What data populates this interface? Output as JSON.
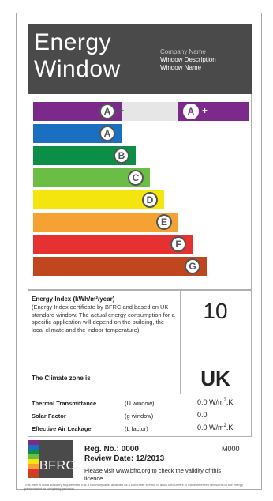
{
  "header": {
    "title_line1": "Energy",
    "title_line2": "Window",
    "company_name": "Company Name",
    "window_description": "Window Description",
    "window_name": "Window Name"
  },
  "ratings": {
    "bands": [
      {
        "letter": "A",
        "suffix": "+",
        "color": "#7b2a8c"
      },
      {
        "letter": "A",
        "suffix": "",
        "color": "#1b6fc0"
      },
      {
        "letter": "B",
        "suffix": "",
        "color": "#0b8f47"
      },
      {
        "letter": "C",
        "suffix": "",
        "color": "#6cbd45"
      },
      {
        "letter": "D",
        "suffix": "",
        "color": "#f4e50f"
      },
      {
        "letter": "E",
        "suffix": "",
        "color": "#f6a233"
      },
      {
        "letter": "F",
        "suffix": "",
        "color": "#e63131"
      },
      {
        "letter": "G",
        "suffix": "",
        "color": "#c0471d"
      }
    ],
    "current": {
      "letter": "A",
      "suffix": "+",
      "color": "#7b2a8c"
    }
  },
  "energy_index": {
    "title": "Energy Index (kWh/m²/year)",
    "description": "(Energy Index certificate by BFRC and based on UK standard window. The actual energy consumption for a specific application will depend on the building, the local climate and the indoor temperature)",
    "value": "10"
  },
  "climate": {
    "label": "The Climate zone is",
    "value": "UK"
  },
  "properties": [
    {
      "name": "Thermal Transmittance",
      "symbol": "(U window)",
      "value": "0.0 W/m",
      "sup": "2",
      "unit_tail": ".K"
    },
    {
      "name": "Solar Factor",
      "symbol": "(g window)",
      "value": "0.0",
      "sup": "",
      "unit_tail": ""
    },
    {
      "name": "Effective Air Leakage",
      "symbol": "(L factor)",
      "value": "0.0 W/m",
      "sup": "2",
      "unit_tail": ".K"
    }
  ],
  "footer": {
    "logo_text": "BFRC",
    "reg_no": "Reg. No.: 0000",
    "review_date": "Review Date: 12/2013",
    "code": "M000",
    "visit_text": "Please visit www.bfrc.org to check the validity of this licence.",
    "disclaimer": "This label is not a statutory requirement. It is a voluntary label awarded as a consumer service to allow consumers to make informed decisions on the energy performance of competing products."
  }
}
